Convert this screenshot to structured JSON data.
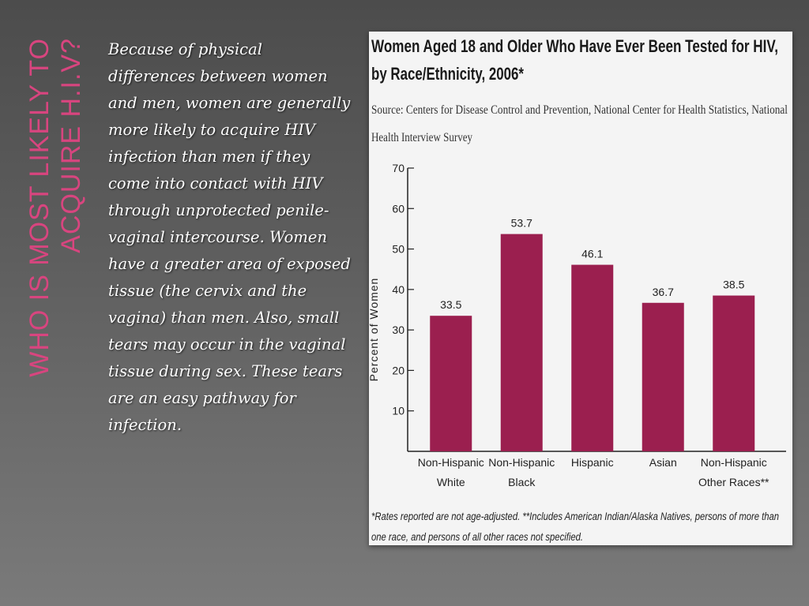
{
  "slide": {
    "title": "Who is most likely to acquire H.I.V?",
    "body": "Because of physical differences between women and men, women are generally more likely to acquire HIV infection than men if they come into contact with HIV through unprotected penile-vaginal intercourse. Women have a greater area of exposed tissue (the cervix and the vagina) than men. Also, small tears may occur in the vaginal tissue during sex. These tears are an easy pathway for infection."
  },
  "chart_data": {
    "type": "bar",
    "title_lines": [
      "Women Aged 18 and Older Who Have Ever Been Tested for HIV,",
      "by Race/Ethnicity, 2006*"
    ],
    "source_lines": [
      "Source: Centers for Disease Control and Prevention, National Center for Health Statistics, National",
      "Health Interview Survey"
    ],
    "ylabel": "Percent of Women",
    "xlabel": "",
    "ylim": [
      0,
      70
    ],
    "yticks": [
      10,
      20,
      30,
      40,
      50,
      60,
      70
    ],
    "grid": false,
    "legend": "none",
    "bar_color": "#9b1f4f",
    "categories": [
      [
        "Non-Hispanic",
        "White"
      ],
      [
        "Non-Hispanic",
        "Black"
      ],
      [
        "Hispanic"
      ],
      [
        "Asian"
      ],
      [
        "Non-Hispanic",
        "Other Races**"
      ]
    ],
    "values": [
      33.5,
      53.7,
      46.1,
      36.7,
      38.5
    ],
    "value_labels": [
      "33.5",
      "53.7",
      "46.1",
      "36.7",
      "38.5"
    ],
    "footnote_lines": [
      "*Rates reported are not age-adjusted. **Includes American Indian/Alaska Natives, persons of more than",
      "one race, and persons of all other races not specified."
    ]
  }
}
